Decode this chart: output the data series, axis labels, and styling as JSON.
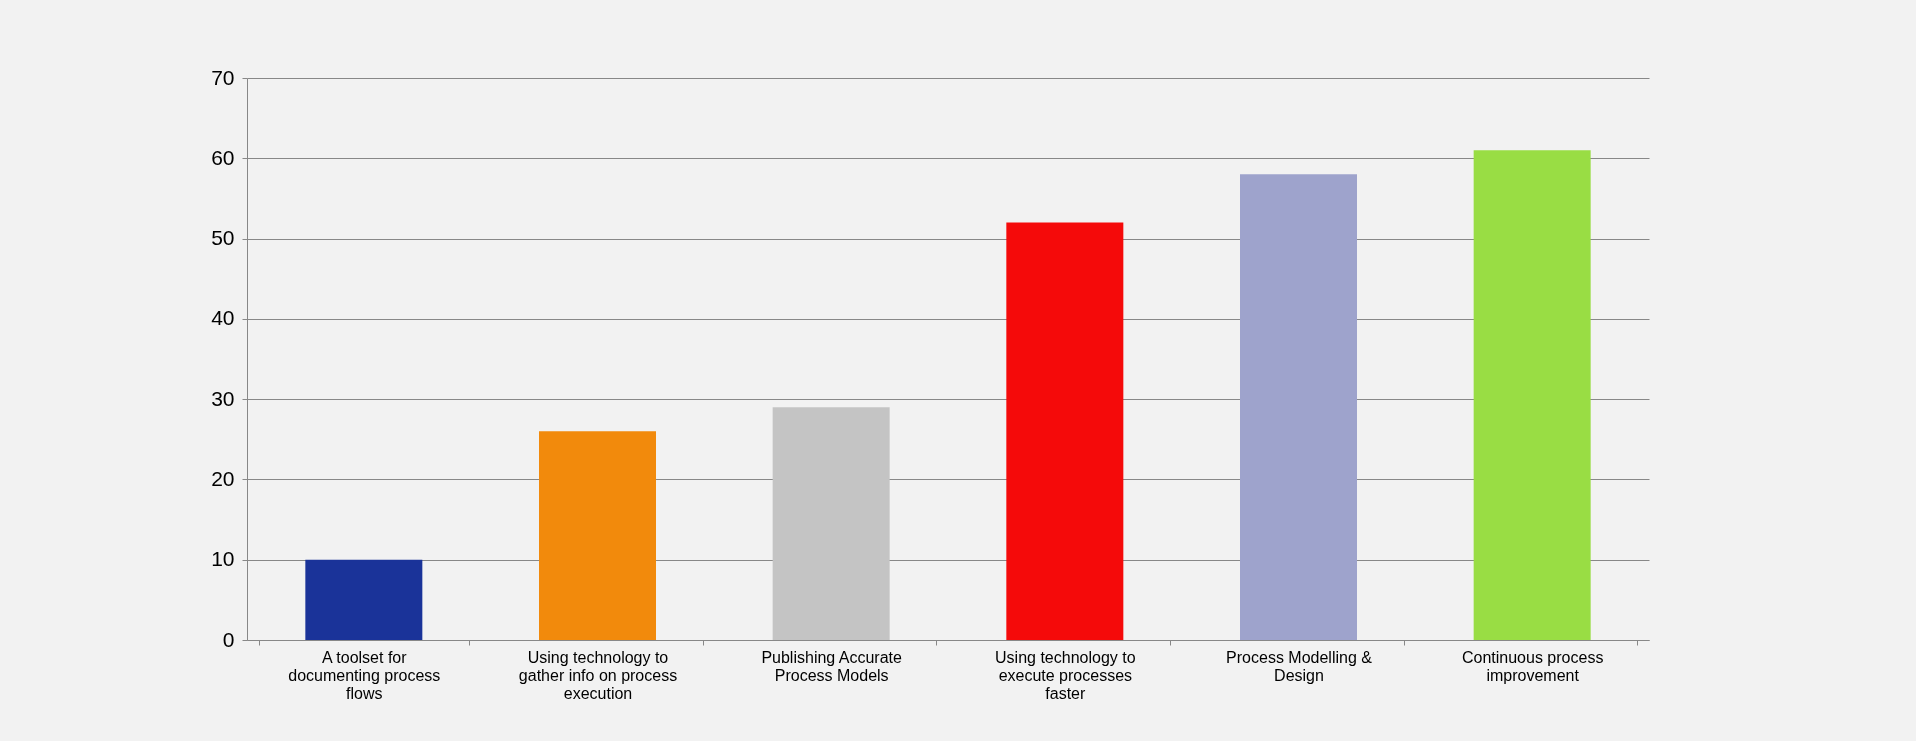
{
  "chart_data": {
    "type": "bar",
    "categories": [
      "A toolset for documenting process flows",
      "Using technology to gather info on process execution",
      "Publishing Accurate Process Models",
      "Using technology to execute processes faster",
      "Process Modelling & Design",
      "Continuous process improvement"
    ],
    "values": [
      10,
      26,
      29,
      52,
      58,
      61
    ],
    "colors": [
      "#1a3399",
      "#f28a0c",
      "#c4c4c4",
      "#f50a0a",
      "#9ea3cc",
      "#99dd44"
    ],
    "ylim": [
      0,
      70
    ],
    "yticks": [
      0,
      10,
      20,
      30,
      40,
      50,
      60,
      70
    ],
    "grid": "y"
  }
}
